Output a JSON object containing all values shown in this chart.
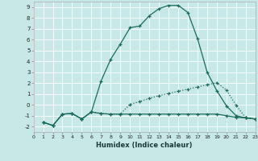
{
  "xlabel": "Humidex (Indice chaleur)",
  "bg_color": "#c8e8e8",
  "grid_color": "#ffffff",
  "line_color": "#1a6b5a",
  "xlim": [
    0,
    23
  ],
  "ylim": [
    -2.5,
    9.5
  ],
  "xticks": [
    0,
    1,
    2,
    3,
    4,
    5,
    6,
    7,
    8,
    9,
    10,
    11,
    12,
    13,
    14,
    15,
    16,
    17,
    18,
    19,
    20,
    21,
    22,
    23
  ],
  "yticks": [
    -2,
    -1,
    0,
    1,
    2,
    3,
    4,
    5,
    6,
    7,
    8,
    9
  ],
  "line1_x": [
    1,
    2,
    3,
    4,
    5,
    6,
    7,
    8,
    9,
    10,
    11,
    12,
    13,
    14,
    15,
    16,
    17,
    18,
    19,
    20,
    21,
    22,
    23
  ],
  "line1_y": [
    -1.6,
    -1.9,
    -0.85,
    -0.8,
    -1.3,
    -0.65,
    2.2,
    4.2,
    5.6,
    7.1,
    7.25,
    8.2,
    8.85,
    9.15,
    9.15,
    8.5,
    6.1,
    3.0,
    1.3,
    -0.1,
    -1.0,
    -1.2,
    -1.3
  ],
  "line2_x": [
    1,
    2,
    3,
    4,
    5,
    6,
    7,
    8,
    9,
    10,
    11,
    12,
    13,
    14,
    15,
    16,
    17,
    18,
    19,
    20,
    21,
    22,
    23
  ],
  "line2_y": [
    -1.6,
    -1.9,
    -0.85,
    -0.8,
    -1.3,
    -0.65,
    -0.8,
    -0.85,
    -0.85,
    0.05,
    0.3,
    0.6,
    0.85,
    1.05,
    1.25,
    1.45,
    1.65,
    1.85,
    2.05,
    1.35,
    -0.05,
    -1.2,
    -1.3
  ],
  "line3_x": [
    1,
    2,
    3,
    4,
    5,
    6,
    7,
    8,
    9,
    10,
    11,
    12,
    13,
    14,
    15,
    16,
    17,
    18,
    19,
    20,
    21,
    22,
    23
  ],
  "line3_y": [
    -1.6,
    -1.9,
    -0.85,
    -0.8,
    -1.3,
    -0.65,
    -0.8,
    -0.85,
    -0.85,
    -0.85,
    -0.85,
    -0.85,
    -0.85,
    -0.85,
    -0.85,
    -0.85,
    -0.85,
    -0.85,
    -0.85,
    -1.0,
    -1.15,
    -1.2,
    -1.3
  ]
}
